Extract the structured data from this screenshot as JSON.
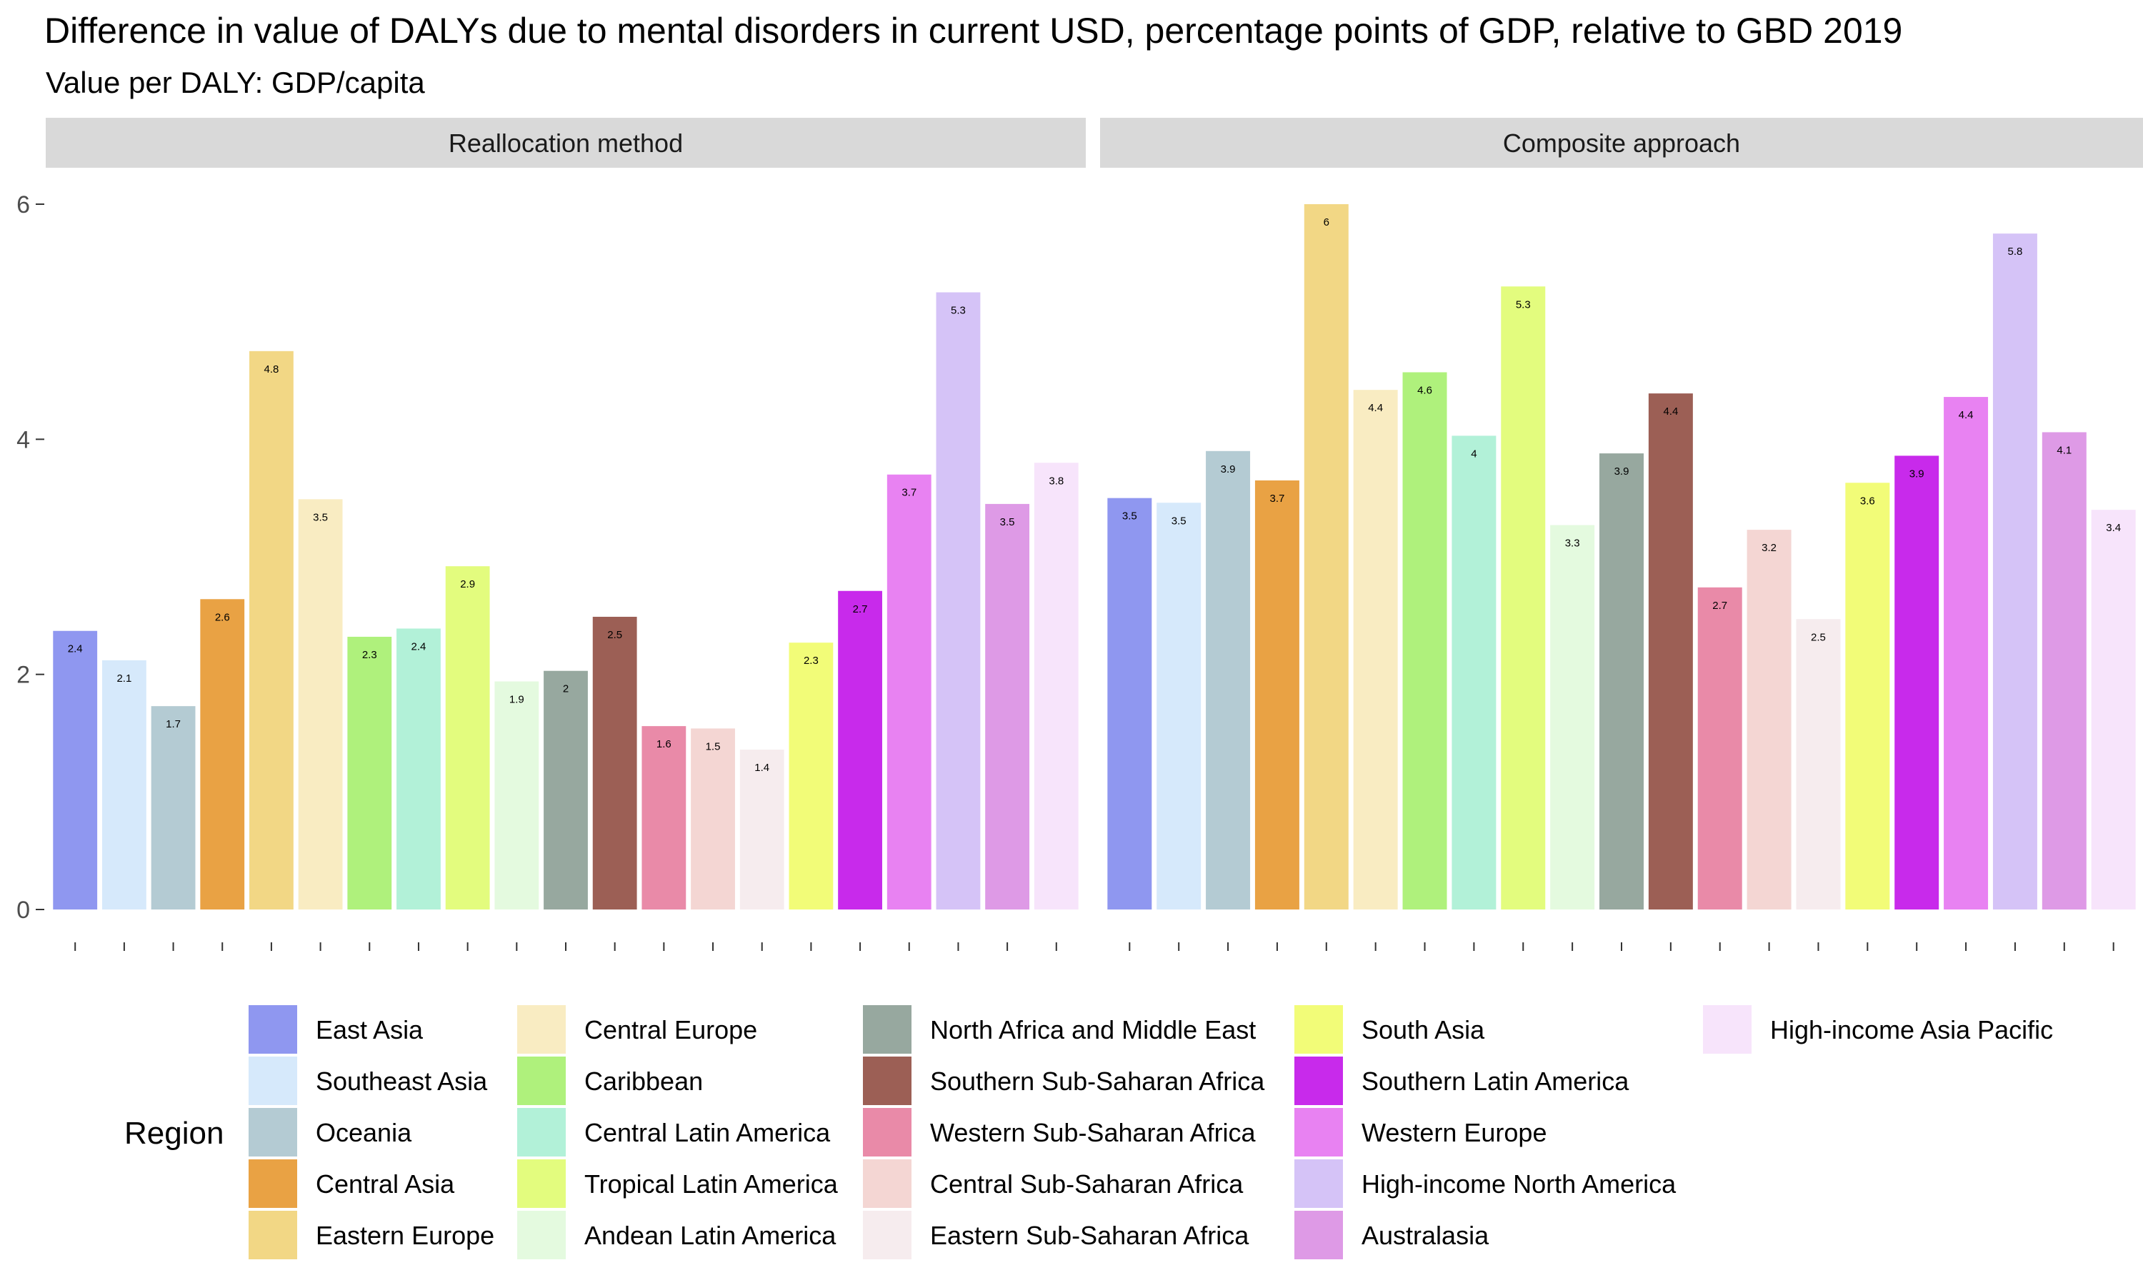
{
  "title": "Difference in value of DALYs due to mental disorders in current USD, percentage points of GDP, relative to GBD 2019",
  "subtitle": "Value per DALY: GDP/capita",
  "legend": {
    "title": "Region"
  },
  "chart_data": {
    "type": "bar",
    "ylim": [
      0,
      6
    ],
    "y_ticks": [
      "0",
      "2",
      "4",
      "6"
    ],
    "grid": false,
    "legend_position": "bottom",
    "categories": [
      "East Asia",
      "Southeast Asia",
      "Oceania",
      "Central Asia",
      "Eastern Europe",
      "Central Europe",
      "Caribbean",
      "Central Latin America",
      "Tropical Latin America",
      "Andean Latin America",
      "North Africa and Middle East",
      "Southern Sub-Saharan Africa",
      "Western Sub-Saharan Africa",
      "Central Sub-Saharan Africa",
      "Eastern Sub-Saharan Africa",
      "South Asia",
      "Southern Latin America",
      "Western Europe",
      "High-income North America",
      "Australasia",
      "High-income Asia Pacific"
    ],
    "colors": [
      "#8f97f0",
      "#d6e9fb",
      "#b4cbd3",
      "#e9a244",
      "#f2d785",
      "#f9ecc2",
      "#aff17c",
      "#b2f1d8",
      "#e3fc7e",
      "#e4fadf",
      "#97a89f",
      "#9c5f55",
      "#e98aa8",
      "#f4d6d3",
      "#f6ecee",
      "#f2fc78",
      "#c82aeb",
      "#e882f2",
      "#d5c3f7",
      "#de9ae6",
      "#f7e4fb"
    ],
    "panels": [
      {
        "name": "Reallocation method",
        "values": [
          2.37,
          2.12,
          1.73,
          2.64,
          4.75,
          3.49,
          2.32,
          2.39,
          2.92,
          1.94,
          2.03,
          2.49,
          1.56,
          1.54,
          1.36,
          2.27,
          2.71,
          3.7,
          5.25,
          3.45,
          3.8
        ],
        "labels": [
          "2.4",
          "2.1",
          "1.7",
          "2.6",
          "4.8",
          "3.5",
          "2.3",
          "2.4",
          "2.9",
          "1.9",
          "2",
          "2.5",
          "1.6",
          "1.5",
          "1.4",
          "2.3",
          "2.7",
          "3.7",
          "5.3",
          "3.5",
          "3.8"
        ]
      },
      {
        "name": "Composite approach",
        "values": [
          3.5,
          3.46,
          3.9,
          3.65,
          6.0,
          4.42,
          4.57,
          4.03,
          5.3,
          3.27,
          3.88,
          4.39,
          2.74,
          3.23,
          2.47,
          3.63,
          3.86,
          4.36,
          5.75,
          4.06,
          3.4
        ],
        "labels": [
          "3.5",
          "3.5",
          "3.9",
          "3.7",
          "6",
          "4.4",
          "4.6",
          "4",
          "5.3",
          "3.3",
          "3.9",
          "4.4",
          "2.7",
          "3.2",
          "2.5",
          "3.6",
          "3.9",
          "4.4",
          "5.8",
          "4.1",
          "3.4"
        ]
      }
    ]
  }
}
